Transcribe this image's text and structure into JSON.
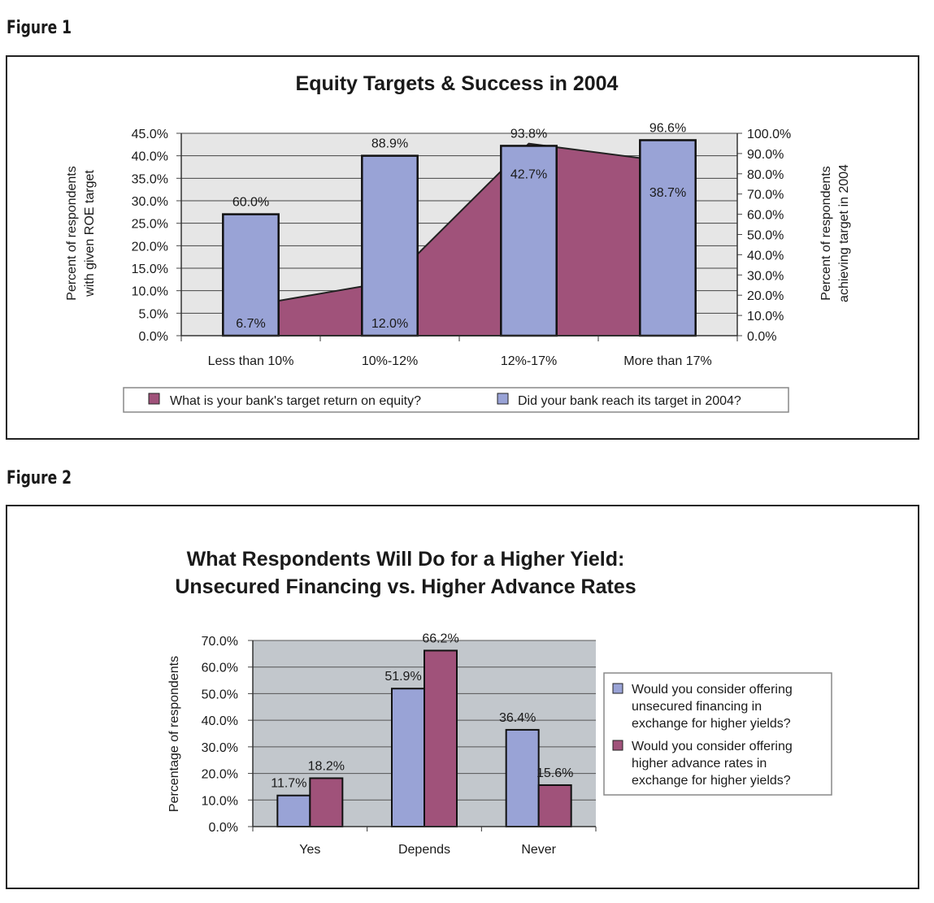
{
  "figures": [
    {
      "label": "Figure 1",
      "chart_data": {
        "type": "bar",
        "title": "Equity Targets & Success in 2004",
        "categories": [
          "Less than 10%",
          "10%-12%",
          "12%-17%",
          "More than 17%"
        ],
        "ylabel": [
          "Percent of respondents",
          "with given ROE target"
        ],
        "y2label": [
          "Percent of respondents",
          "achieving target in 2004"
        ],
        "ylim": [
          0,
          45
        ],
        "y2lim": [
          0,
          100
        ],
        "yticks": [
          "45.0%",
          "40.0%",
          "35.0%",
          "30.0%",
          "25.0%",
          "20.0%",
          "15.0%",
          "10.0%",
          "5.0%",
          "0.0%"
        ],
        "y2ticks": [
          "100.0%",
          "90.0%",
          "80.0%",
          "70.0%",
          "60.0%",
          "50.0%",
          "40.0%",
          "30.0%",
          "20.0%",
          "10.0%",
          "0.0%"
        ],
        "grid": true,
        "legend_position": "bottom",
        "series": [
          {
            "name": "What is your bank's target return on equity?",
            "type": "area",
            "axis": "left",
            "values": [
              6.7,
              12.0,
              42.7,
              38.7
            ],
            "labels": [
              "6.7%",
              "12.0%",
              "42.7%",
              "38.7%"
            ],
            "color": "#a0527a"
          },
          {
            "name": "Did your bank reach its target in 2004?",
            "type": "bar",
            "axis": "right",
            "values": [
              60.0,
              88.9,
              93.8,
              96.6
            ],
            "labels": [
              "60.0%",
              "88.9%",
              "93.8%",
              "96.6%"
            ],
            "color": "#99a3d6"
          }
        ]
      }
    },
    {
      "label": "Figure 2",
      "chart_data": {
        "type": "bar",
        "title": [
          "What Respondents Will Do for a Higher Yield:",
          "Unsecured Financing vs. Higher Advance Rates"
        ],
        "categories": [
          "Yes",
          "Depends",
          "Never"
        ],
        "ylabel": "Percentage of respondents",
        "ylim": [
          0,
          70
        ],
        "yticks": [
          "70.0%",
          "60.0%",
          "50.0%",
          "40.0%",
          "30.0%",
          "20.0%",
          "10.0%",
          "0.0%"
        ],
        "grid": true,
        "legend_position": "right",
        "series": [
          {
            "name": [
              "Would you consider offering",
              "unsecured financing in",
              "exchange for higher yields?"
            ],
            "values": [
              11.7,
              51.9,
              36.4
            ],
            "labels": [
              "11.7%",
              "51.9%",
              "36.4%"
            ],
            "color": "#99a3d6"
          },
          {
            "name": [
              "Would you consider offering",
              "higher advance rates in",
              "exchange for higher yields?"
            ],
            "values": [
              18.2,
              66.2,
              15.6
            ],
            "labels": [
              "18.2%",
              "66.2%",
              "15.6%"
            ],
            "color": "#a0527a"
          }
        ]
      }
    }
  ]
}
